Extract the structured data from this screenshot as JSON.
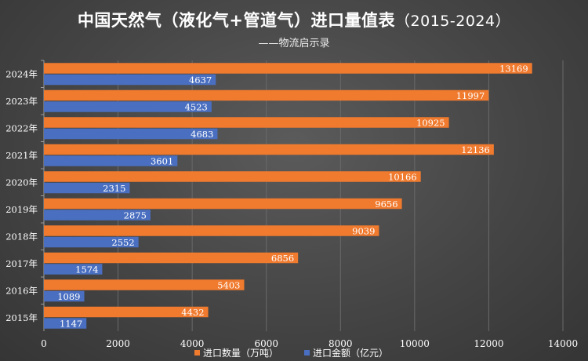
{
  "chart_data": {
    "type": "bar",
    "orientation": "horizontal",
    "title": "中国天然气（液化气+管道气）进口量值表",
    "title_range": "（2015-2024）",
    "subtitle": "——物流启示录",
    "categories": [
      "2024年",
      "2023年",
      "2022年",
      "2021年",
      "2020年",
      "2019年",
      "2018年",
      "2017年",
      "2016年",
      "2015年"
    ],
    "series": [
      {
        "name": "进口数量（万吨）",
        "color": "#f07a2e",
        "values": [
          13169,
          11997,
          10925,
          12136,
          10166,
          9656,
          9039,
          6856,
          5403,
          4432
        ]
      },
      {
        "name": "进口金额（亿元）",
        "color": "#4a6fc0",
        "values": [
          4637,
          4523,
          4683,
          3601,
          2315,
          2875,
          2552,
          1574,
          1089,
          1147
        ]
      }
    ],
    "xlim": [
      0,
      14000
    ],
    "xticks": [
      0,
      2000,
      4000,
      6000,
      8000,
      10000,
      12000,
      14000
    ],
    "grid": true,
    "legend_position": "bottom"
  }
}
